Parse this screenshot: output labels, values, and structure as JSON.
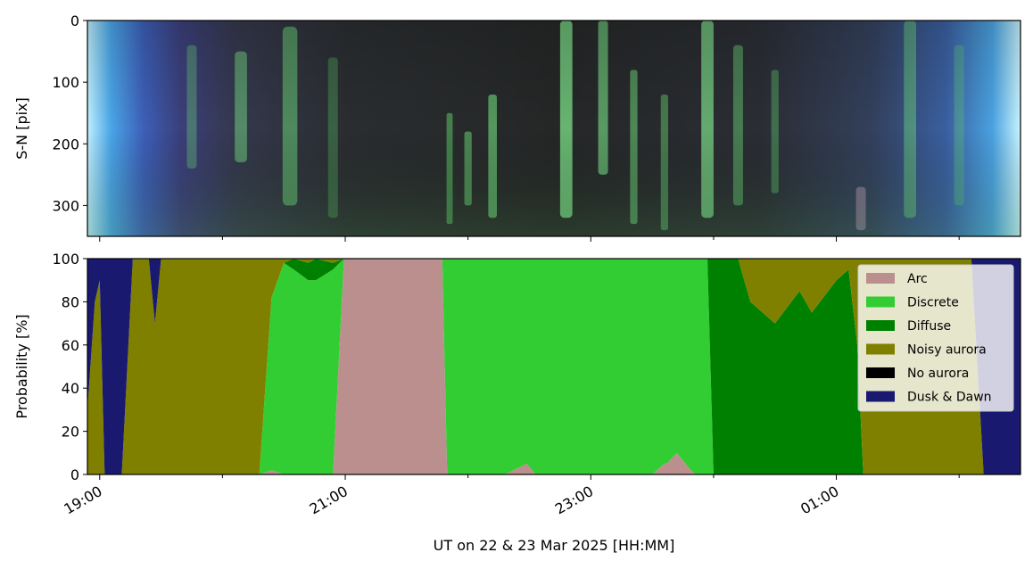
{
  "chart_data": [
    {
      "type": "heatmap",
      "ylabel": "S-N [pix]",
      "yticks": [
        0,
        100,
        200,
        300
      ],
      "ylim": [
        350,
        0
      ],
      "xlim": [
        18.9,
        26.5
      ],
      "xticks_labeled": false,
      "streaks": [
        {
          "t": 19.75,
          "c": "#6fdc7a",
          "w": 0.08,
          "y0": 40,
          "y1": 240,
          "o": 0.35
        },
        {
          "t": 20.15,
          "c": "#7df08a",
          "w": 0.1,
          "y0": 50,
          "y1": 230,
          "o": 0.45
        },
        {
          "t": 20.55,
          "c": "#6fe07c",
          "w": 0.12,
          "y0": 10,
          "y1": 300,
          "o": 0.5
        },
        {
          "t": 20.9,
          "c": "#55c064",
          "w": 0.08,
          "y0": 60,
          "y1": 320,
          "o": 0.35
        },
        {
          "t": 21.85,
          "c": "#5fd46c",
          "w": 0.05,
          "y0": 150,
          "y1": 330,
          "o": 0.5
        },
        {
          "t": 22.0,
          "c": "#6ee07a",
          "w": 0.06,
          "y0": 180,
          "y1": 300,
          "o": 0.5
        },
        {
          "t": 22.2,
          "c": "#7af087",
          "w": 0.07,
          "y0": 120,
          "y1": 320,
          "o": 0.55
        },
        {
          "t": 22.8,
          "c": "#8bff98",
          "w": 0.1,
          "y0": 0,
          "y1": 320,
          "o": 0.65
        },
        {
          "t": 23.1,
          "c": "#84f592",
          "w": 0.08,
          "y0": 0,
          "y1": 250,
          "o": 0.55
        },
        {
          "t": 23.35,
          "c": "#73e680",
          "w": 0.06,
          "y0": 80,
          "y1": 330,
          "o": 0.5
        },
        {
          "t": 23.6,
          "c": "#6ad876",
          "w": 0.06,
          "y0": 120,
          "y1": 340,
          "o": 0.45
        },
        {
          "t": 23.95,
          "c": "#8cff99",
          "w": 0.1,
          "y0": 0,
          "y1": 320,
          "o": 0.6
        },
        {
          "t": 24.2,
          "c": "#6cdc79",
          "w": 0.08,
          "y0": 40,
          "y1": 300,
          "o": 0.45
        },
        {
          "t": 24.5,
          "c": "#62d06f",
          "w": 0.06,
          "y0": 80,
          "y1": 280,
          "o": 0.4
        },
        {
          "t": 25.2,
          "c": "#c9a0c0",
          "w": 0.08,
          "y0": 270,
          "y1": 340,
          "o": 0.45
        },
        {
          "t": 25.6,
          "c": "#6fdc7a",
          "w": 0.1,
          "y0": 0,
          "y1": 320,
          "o": 0.45
        },
        {
          "t": 26.0,
          "c": "#62c870",
          "w": 0.08,
          "y0": 40,
          "y1": 300,
          "o": 0.35
        }
      ]
    },
    {
      "type": "area",
      "xlabel": "UT on 22 & 23 Mar 2025 [HH:MM]",
      "ylabel": "Probability [%]",
      "ylim": [
        0,
        100
      ],
      "xlim": [
        18.9,
        26.5
      ],
      "yticks": [
        0,
        20,
        40,
        60,
        80,
        100
      ],
      "xticks": [
        19,
        21,
        23,
        25
      ],
      "xtick_labels": [
        "19:00",
        "21:00",
        "23:00",
        "01:00"
      ],
      "minor_xticks": [
        20,
        22,
        24,
        26
      ],
      "legend": "top-right",
      "x": [
        18.9,
        18.96,
        19.0,
        19.04,
        19.1,
        19.18,
        19.27,
        19.4,
        19.45,
        19.5,
        19.6,
        19.7,
        19.85,
        20.0,
        20.2,
        20.3,
        20.4,
        20.5,
        20.58,
        20.7,
        20.76,
        20.9,
        20.99,
        21.2,
        21.4,
        21.6,
        21.79,
        21.83,
        22.0,
        22.3,
        22.48,
        22.55,
        22.7,
        23.0,
        23.3,
        23.5,
        23.6,
        23.62,
        23.7,
        23.8,
        23.85,
        23.95,
        24.0,
        24.2,
        24.3,
        24.5,
        24.7,
        24.8,
        25.0,
        25.1,
        25.17,
        25.22,
        25.3,
        25.5,
        25.7,
        25.9,
        26.1,
        26.2,
        26.3,
        26.5
      ],
      "series": [
        {
          "name": "Arc",
          "color": "#bc8f8f",
          "values": [
            0,
            0,
            0,
            0,
            0,
            0,
            0,
            0,
            0,
            0,
            0,
            0,
            0,
            0,
            0,
            0,
            2,
            0,
            0,
            0,
            0,
            0,
            100,
            100,
            100,
            100,
            100,
            0,
            0,
            0,
            5,
            0,
            0,
            0,
            0,
            0,
            5,
            5,
            10,
            3,
            0,
            0,
            0,
            0,
            0,
            0,
            0,
            0,
            0,
            0,
            0,
            0,
            0,
            0,
            0,
            0,
            0,
            0,
            0,
            0
          ]
        },
        {
          "name": "Discrete",
          "color": "#32cd32",
          "values": [
            0,
            0,
            0,
            0,
            0,
            0,
            0,
            0,
            0,
            0,
            0,
            0,
            0,
            0,
            0,
            0,
            80,
            98,
            95,
            90,
            90,
            95,
            0,
            0,
            0,
            0,
            0,
            100,
            100,
            100,
            95,
            100,
            100,
            100,
            100,
            100,
            95,
            95,
            90,
            97,
            100,
            100,
            0,
            0,
            0,
            0,
            0,
            0,
            0,
            0,
            0,
            0,
            0,
            0,
            0,
            0,
            0,
            0,
            0,
            0
          ]
        },
        {
          "name": "Diffuse",
          "color": "#008000",
          "values": [
            0,
            0,
            0,
            0,
            0,
            0,
            0,
            0,
            0,
            0,
            0,
            0,
            0,
            0,
            0,
            0,
            0,
            0,
            5,
            8,
            10,
            3,
            0,
            0,
            0,
            0,
            0,
            0,
            0,
            0,
            0,
            0,
            0,
            0,
            0,
            0,
            0,
            0,
            0,
            0,
            0,
            0,
            100,
            100,
            80,
            70,
            85,
            75,
            90,
            95,
            60,
            0,
            0,
            0,
            0,
            0,
            0,
            0,
            0,
            0
          ]
        },
        {
          "name": "Noisy aurora",
          "color": "#808000",
          "values": [
            30,
            80,
            90,
            0,
            0,
            0,
            100,
            100,
            70,
            100,
            100,
            100,
            100,
            100,
            100,
            100,
            18,
            2,
            0,
            2,
            0,
            2,
            0,
            0,
            0,
            0,
            0,
            0,
            0,
            0,
            0,
            0,
            0,
            0,
            0,
            0,
            0,
            0,
            0,
            0,
            0,
            0,
            0,
            0,
            20,
            30,
            15,
            25,
            10,
            5,
            40,
            100,
            100,
            100,
            100,
            100,
            100,
            0,
            0,
            0
          ]
        },
        {
          "name": "No aurora",
          "color": "#000000",
          "values": [
            0,
            0,
            0,
            0,
            0,
            0,
            0,
            0,
            0,
            0,
            0,
            0,
            0,
            0,
            0,
            0,
            0,
            0,
            0,
            0,
            0,
            0,
            0,
            0,
            0,
            0,
            0,
            0,
            0,
            0,
            0,
            0,
            0,
            0,
            0,
            0,
            0,
            0,
            0,
            0,
            0,
            0,
            0,
            0,
            0,
            0,
            0,
            0,
            0,
            0,
            0,
            0,
            0,
            0,
            0,
            0,
            0,
            0,
            0,
            0
          ]
        },
        {
          "name": "Dusk & Dawn",
          "color": "#191970",
          "values": [
            70,
            20,
            10,
            100,
            100,
            100,
            0,
            0,
            30,
            0,
            0,
            0,
            0,
            0,
            0,
            0,
            0,
            0,
            0,
            0,
            0,
            0,
            0,
            0,
            0,
            0,
            0,
            0,
            0,
            0,
            0,
            0,
            0,
            0,
            0,
            0,
            0,
            0,
            0,
            0,
            0,
            0,
            0,
            0,
            0,
            0,
            0,
            0,
            0,
            0,
            0,
            0,
            0,
            0,
            0,
            0,
            0,
            100,
            100,
            100
          ]
        }
      ]
    }
  ]
}
